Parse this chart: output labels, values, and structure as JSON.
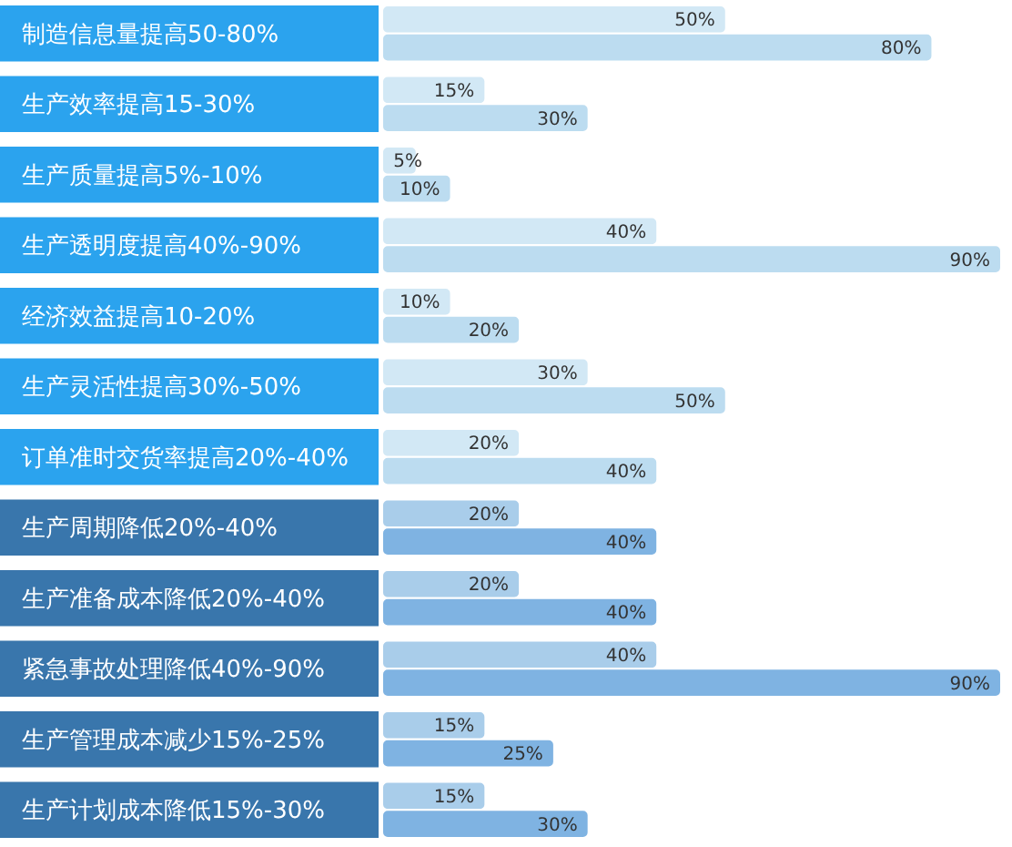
{
  "chart_data": {
    "type": "bar",
    "orientation": "horizontal",
    "categories": [
      "制造信息量提高50-80%",
      "生产效率提高15-30%",
      "生产质量提高5%-10%",
      "生产透明度提高40%-90%",
      "经济效益提高10-20%",
      "生产灵活性提高30%-50%",
      "订单准时交货率提高20%-40%",
      "生产周期降低20%-40%",
      "生产准备成本降低20%-40%",
      "紧急事故处理降低40%-90%",
      "生产管理成本减少15%-25%",
      "生产计划成本降低15%-30%"
    ],
    "series": [
      {
        "values": [
          50,
          15,
          5,
          40,
          10,
          30,
          20,
          20,
          20,
          40,
          15,
          15
        ],
        "value_labels": [
          "50%",
          "15%",
          "5%",
          "40%",
          "10%",
          "30%",
          "20%",
          "20%",
          "20%",
          "40%",
          "15%",
          "15%"
        ],
        "colors": [
          "#d2e8f5",
          "#d2e8f5",
          "#d2e8f5",
          "#d2e8f5",
          "#d2e8f5",
          "#d2e8f5",
          "#d2e8f5",
          "#a9cdea",
          "#a9cdea",
          "#a9cdea",
          "#a9cdea",
          "#a9cdea"
        ]
      },
      {
        "values": [
          80,
          30,
          10,
          90,
          20,
          50,
          40,
          40,
          40,
          90,
          25,
          30
        ],
        "value_labels": [
          "80%",
          "30%",
          "10%",
          "90%",
          "20%",
          "50%",
          "40%",
          "40%",
          "40%",
          "90%",
          "25%",
          "30%"
        ],
        "colors": [
          "#bcdcf0",
          "#bcdcf0",
          "#bcdcf0",
          "#bcdcf0",
          "#bcdcf0",
          "#bcdcf0",
          "#bcdcf0",
          "#7fb3e2",
          "#7fb3e2",
          "#7fb3e2",
          "#7fb3e2",
          "#7fb3e2"
        ]
      }
    ]
  }
}
